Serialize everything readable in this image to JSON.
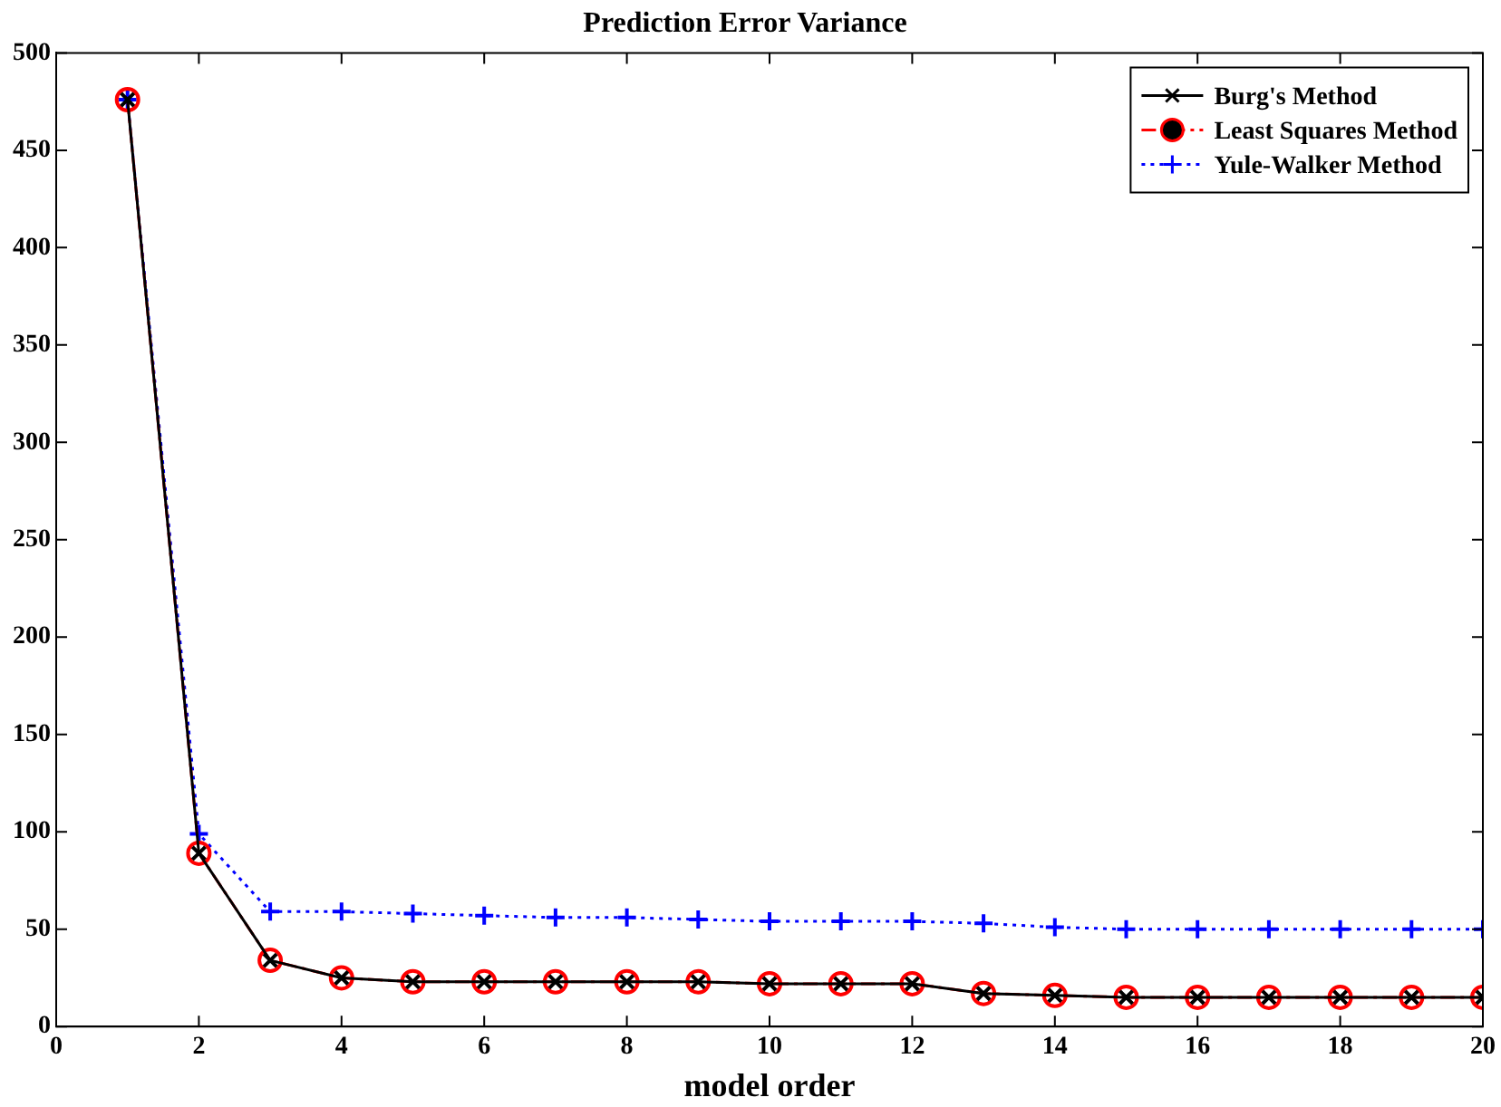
{
  "chart_data": {
    "type": "line",
    "title": "Prediction Error Variance",
    "xlabel": "model order",
    "x": [
      1,
      2,
      3,
      4,
      5,
      6,
      7,
      8,
      9,
      10,
      11,
      12,
      13,
      14,
      15,
      16,
      17,
      18,
      19,
      20
    ],
    "series": [
      {
        "name": "Burg's Method",
        "color": "#000000",
        "marker": "cross",
        "line_style": "solid",
        "values": [
          476,
          89,
          34,
          25,
          23,
          23,
          23,
          23,
          23,
          22,
          22,
          22,
          17,
          16,
          15,
          15,
          15,
          15,
          15,
          15
        ]
      },
      {
        "name": "Least Squares Method",
        "color": "#ff0000",
        "marker": "circle",
        "line_style": "dashed",
        "values": [
          476,
          89,
          34,
          25,
          23,
          23,
          23,
          23,
          23,
          22,
          22,
          22,
          17,
          16,
          15,
          15,
          15,
          15,
          15,
          15
        ]
      },
      {
        "name": "Yule-Walker Method",
        "color": "#0000ff",
        "marker": "plus",
        "line_style": "dotted",
        "values": [
          476,
          99,
          59,
          59,
          58,
          57,
          56,
          56,
          55,
          54,
          54,
          54,
          53,
          51,
          50,
          50,
          50,
          50,
          50,
          50
        ]
      }
    ],
    "xlim": [
      0,
      20
    ],
    "xticks": [
      0,
      2,
      4,
      6,
      8,
      10,
      12,
      14,
      16,
      18,
      20
    ],
    "ylim": [
      0,
      500
    ],
    "yticks": [
      0,
      50,
      100,
      150,
      200,
      250,
      300,
      350,
      400,
      450,
      500
    ],
    "grid": false,
    "legend": "top right"
  }
}
